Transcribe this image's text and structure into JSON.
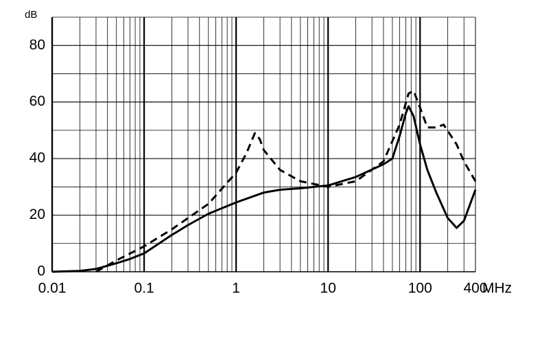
{
  "chart_data": {
    "type": "line",
    "x_label": "MHz",
    "y_label": "dB",
    "xlim": [
      0.01,
      400
    ],
    "ylim": [
      0,
      90
    ],
    "xticks": [
      0.01,
      0.1,
      1,
      10,
      100,
      400
    ],
    "yticks": [
      0,
      20,
      40,
      60,
      80
    ],
    "log_x": true,
    "grid": true,
    "series": [
      {
        "color": "#000000",
        "dashed": false,
        "x": [
          0.01,
          0.02,
          0.03,
          0.05,
          0.07,
          0.1,
          0.2,
          0.3,
          0.5,
          1,
          2,
          3,
          5,
          10,
          20,
          40,
          50,
          60,
          70,
          75,
          85,
          100,
          120,
          150,
          200,
          250,
          300,
          400
        ],
        "values": [
          0,
          0.3,
          1,
          3,
          4.5,
          6.5,
          13,
          16.5,
          20.5,
          24.5,
          28,
          29,
          29.5,
          30.5,
          33.5,
          38,
          40,
          48,
          56,
          58.5,
          55,
          45,
          36,
          28,
          19,
          15.5,
          18,
          29
        ]
      },
      {
        "color": "#000000",
        "dashed": true,
        "x": [
          0.03,
          0.05,
          0.1,
          0.2,
          0.5,
          1,
          1.3,
          1.6,
          1.8,
          2,
          3,
          5,
          10,
          20,
          40,
          60,
          75,
          85,
          100,
          120,
          150,
          180,
          250,
          300,
          400
        ],
        "values": [
          0,
          4,
          9,
          15,
          24,
          35,
          42,
          49,
          47,
          43,
          36,
          32,
          30,
          32,
          39,
          52,
          63,
          64,
          58,
          51,
          51,
          52,
          45,
          39,
          32
        ]
      }
    ]
  }
}
